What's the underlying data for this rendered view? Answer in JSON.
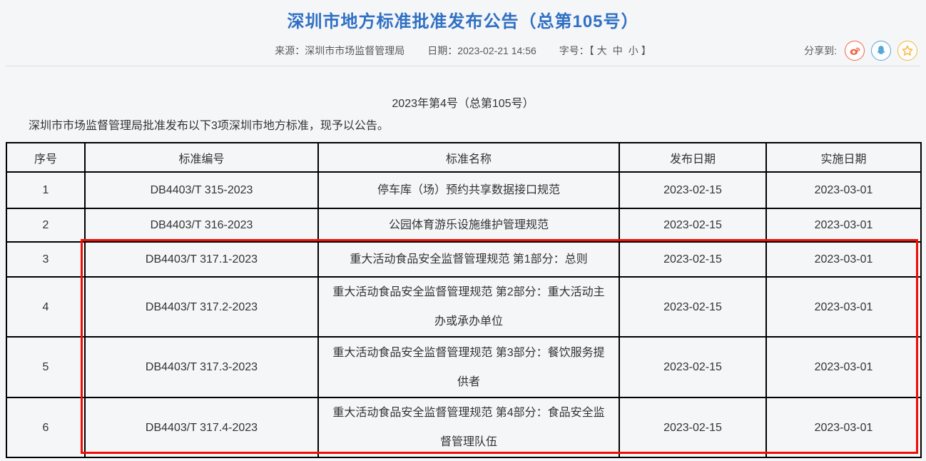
{
  "page": {
    "title": "深圳市地方标准批准发布公告（总第105号）",
    "meta": {
      "source_label": "来源：",
      "source": "深圳市市场监督管理局",
      "date_label": "日期：",
      "date": "2023-02-21 14:56",
      "font_size_label": "字号：",
      "bracket_open": "【",
      "bracket_close": "】",
      "font_options": [
        "大",
        "中",
        "小"
      ]
    },
    "share": {
      "label": "分享到:",
      "icons": [
        "weibo",
        "qq",
        "qzone"
      ]
    }
  },
  "article": {
    "doc_number": "2023年第4号（总第105号）",
    "intro": "深圳市市场监督管理局批准发布以下3项深圳市地方标准，现予以公告。"
  },
  "table": {
    "headers": [
      "序号",
      "标准编号",
      "标准名称",
      "发布日期",
      "实施日期"
    ],
    "rows": [
      [
        "1",
        "DB4403/T 315-2023",
        "停车库（场）预约共享数据接口规范",
        "2023-02-15",
        "2023-03-01"
      ],
      [
        "2",
        "DB4403/T 316-2023",
        "公园体育游乐设施维护管理规范",
        "2023-02-15",
        "2023-03-01"
      ],
      [
        "3",
        "DB4403/T 317.1-2023",
        "重大活动食品安全监督管理规范 第1部分：总则",
        "2023-02-15",
        "2023-03-01"
      ],
      [
        "4",
        "DB4403/T 317.2-2023",
        "重大活动食品安全监督管理规范 第2部分：重大活动主办或承办单位",
        "2023-02-15",
        "2023-03-01"
      ],
      [
        "5",
        "DB4403/T 317.3-2023",
        "重大活动食品安全监督管理规范 第3部分：餐饮服务提供者",
        "2023-02-15",
        "2023-03-01"
      ],
      [
        "6",
        "DB4403/T 317.4-2023",
        "重大活动食品安全监督管理规范 第4部分：食品安全监督管理队伍",
        "2023-02-15",
        "2023-03-01"
      ]
    ],
    "highlight": {
      "rows_covered": "3-6",
      "color": "#f10e04"
    }
  },
  "colors": {
    "title_blue": "#3070c4",
    "highlight_red": "#f10e04",
    "weibo_orange": "#f0664a",
    "qq_blue": "#54a7dd",
    "qzone_gold": "#f5b73d",
    "border_black": "#000000",
    "page_background": "#f5f6f8"
  }
}
